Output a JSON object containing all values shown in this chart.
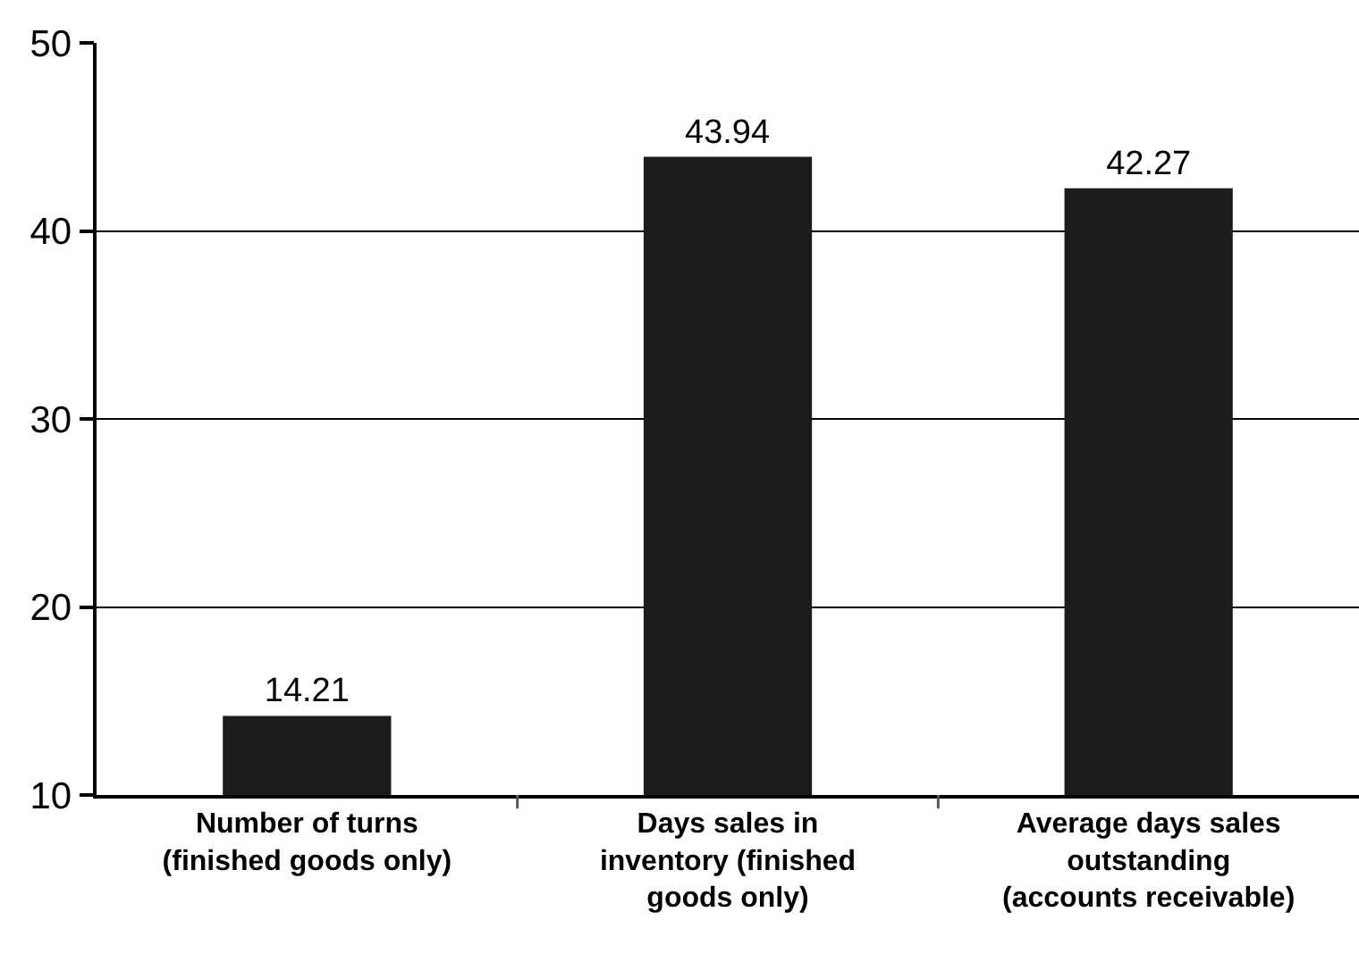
{
  "chart_data": {
    "type": "bar",
    "categories": [
      "Number of turns\n(finished goods only)",
      "Days sales in\ninventory (finished\ngoods only)",
      "Average days sales\noutstanding\n(accounts receivable)"
    ],
    "values": [
      14.21,
      43.94,
      42.27
    ],
    "color": "#1c1c1c",
    "ylim": [
      10,
      50
    ],
    "yticks": [
      10,
      20,
      30,
      40,
      50
    ],
    "grid": "y",
    "data_labels": true
  }
}
